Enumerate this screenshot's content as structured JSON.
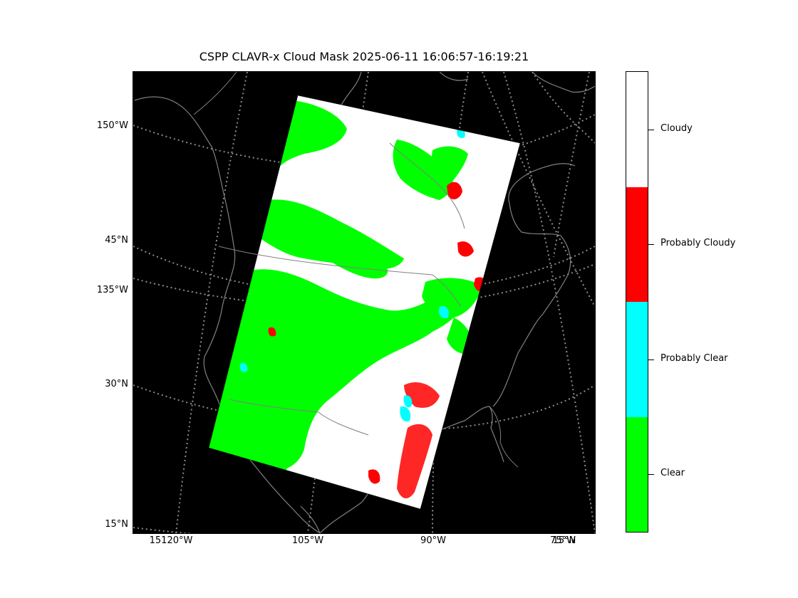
{
  "title": "CSPP CLAVR-x Cloud Mask 2025-06-11 16:06:57-16:19:21",
  "lat_labels": [
    "150°W",
    "45°N",
    "135°W",
    "30°N",
    "15°N"
  ],
  "lon_labels": [
    "15120°W",
    "105°W",
    "90°W",
    "75°W",
    "15°N"
  ],
  "colorbar": {
    "categories": [
      {
        "label": "Cloudy",
        "color": "#ffffff"
      },
      {
        "label": "Probably Cloudy",
        "color": "#ff0000"
      },
      {
        "label": "Probably Clear",
        "color": "#00ffff"
      },
      {
        "label": "Clear",
        "color": "#00ff00"
      }
    ]
  },
  "colors": {
    "background": "#000000",
    "coastline": "#808080",
    "graticule": "#8c8c8c",
    "cloudy": "#ffffff",
    "clear": "#00ff00",
    "probably_clear": "#00ffff",
    "probably_cloudy": "#ff0000"
  }
}
